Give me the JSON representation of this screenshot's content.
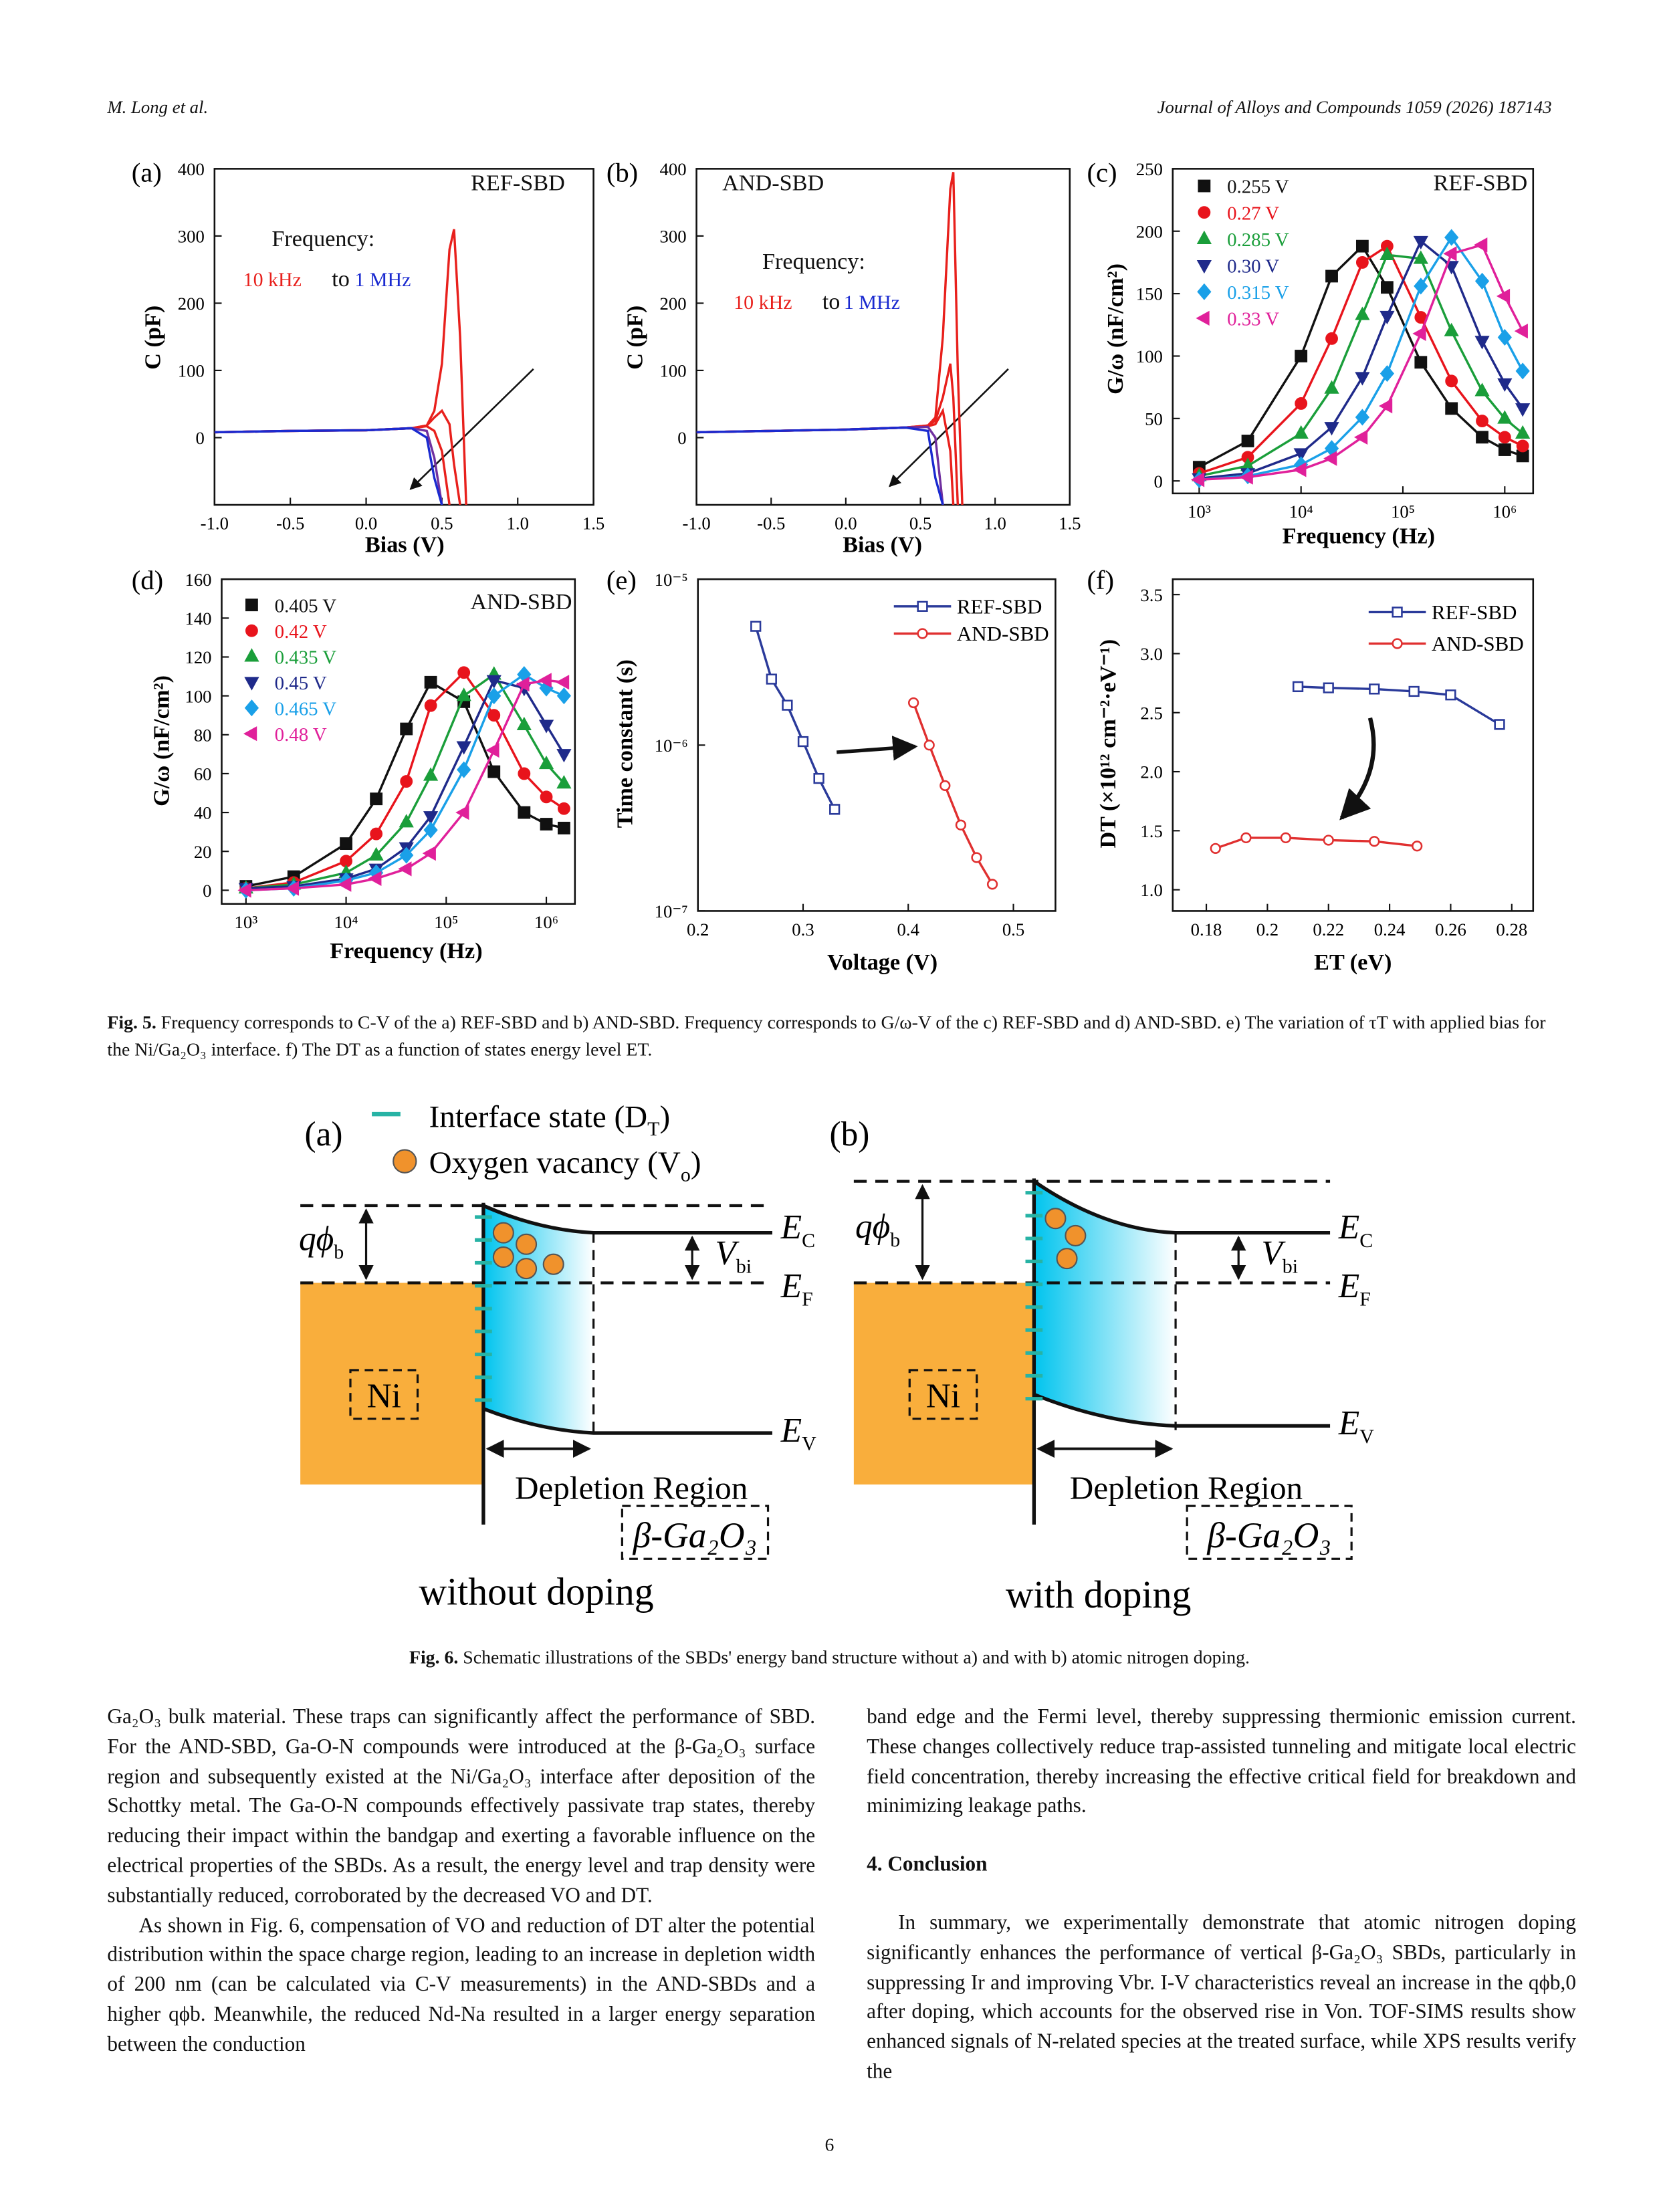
{
  "header": {
    "left": "M. Long et al.",
    "right": "Journal of Alloys and Compounds 1059 (2026) 187143"
  },
  "chart_data": [
    {
      "type": "line",
      "panel_label": "(a)",
      "xlabel": "Bias (V)",
      "ylabel": "C (pF)",
      "annotations": [
        {
          "text": "REF-SBD"
        },
        {
          "text": "Frequency:"
        },
        {
          "text": "10 kHz",
          "color": "#e8201c"
        },
        {
          "text": "to"
        },
        {
          "text": "1 MHz",
          "color": "#1a2ad0"
        }
      ],
      "xlim": [
        -1.0,
        1.5
      ],
      "xticks": [
        {
          "value": -1,
          "label": "-1.0"
        },
        {
          "value": -0.5,
          "label": "-0.5"
        },
        {
          "value": 0,
          "label": "0.0"
        },
        {
          "value": 0.5,
          "label": "0.5"
        },
        {
          "value": 1,
          "label": "1.0"
        },
        {
          "value": 1.5,
          "label": "1.5"
        }
      ],
      "ylim": [
        -100,
        400
      ],
      "yticks": [
        0,
        100,
        200,
        300,
        400
      ],
      "x": [
        -1.0,
        -0.5,
        0.0,
        0.3,
        0.4,
        0.45,
        0.5,
        0.55,
        0.58,
        0.62,
        0.66
      ],
      "series": [
        {
          "color": "#e8201c",
          "values": [
            8,
            10,
            11,
            14,
            18,
            40,
            110,
            280,
            310,
            150,
            -100
          ]
        },
        {
          "color": "#e8201c",
          "values": [
            8,
            10,
            11,
            14,
            18,
            30,
            40,
            20,
            -40,
            -100,
            null
          ]
        },
        {
          "color": "#e8201c",
          "values": [
            8,
            10,
            11,
            14,
            17,
            10,
            -20,
            -100,
            null,
            null,
            null
          ]
        },
        {
          "color": "#7030a0",
          "values": [
            8,
            10,
            11,
            14,
            10,
            -30,
            -100,
            null,
            null,
            null,
            null
          ]
        },
        {
          "color": "#1a2ad0",
          "values": [
            8,
            10,
            11,
            14,
            0,
            -60,
            -100,
            null,
            null,
            null,
            null
          ]
        }
      ]
    },
    {
      "type": "line",
      "panel_label": "(b)",
      "xlabel": "Bias (V)",
      "ylabel": "C (pF)",
      "annotations": [
        {
          "text": "AND-SBD"
        },
        {
          "text": "Frequency:"
        },
        {
          "text": "10 kHz",
          "color": "#e8201c"
        },
        {
          "text": "to"
        },
        {
          "text": "1 MHz",
          "color": "#1a2ad0"
        }
      ],
      "xlim": [
        -1.0,
        1.5
      ],
      "xticks": [
        {
          "value": -1,
          "label": "-1.0"
        },
        {
          "value": -0.5,
          "label": "-0.5"
        },
        {
          "value": 0,
          "label": "0.0"
        },
        {
          "value": 0.5,
          "label": "0.5"
        },
        {
          "value": 1,
          "label": "1.0"
        },
        {
          "value": 1.5,
          "label": "1.5"
        }
      ],
      "ylim": [
        -100,
        400
      ],
      "yticks": [
        0,
        100,
        200,
        300,
        400
      ],
      "x": [
        -1.0,
        -0.5,
        0.0,
        0.4,
        0.55,
        0.6,
        0.65,
        0.7,
        0.72,
        0.75,
        0.78
      ],
      "series": [
        {
          "color": "#e8201c",
          "values": [
            8,
            10,
            12,
            15,
            18,
            30,
            150,
            370,
            395,
            100,
            -100
          ]
        },
        {
          "color": "#e8201c",
          "values": [
            8,
            10,
            12,
            15,
            18,
            25,
            60,
            110,
            60,
            -100,
            null
          ]
        },
        {
          "color": "#e8201c",
          "values": [
            8,
            10,
            12,
            15,
            17,
            20,
            40,
            -20,
            -100,
            null,
            null
          ]
        },
        {
          "color": "#7030a0",
          "values": [
            8,
            10,
            12,
            15,
            16,
            0,
            -100,
            null,
            null,
            null,
            null
          ]
        },
        {
          "color": "#1a2ad0",
          "values": [
            8,
            10,
            12,
            15,
            10,
            -60,
            -100,
            null,
            null,
            null,
            null
          ]
        }
      ]
    },
    {
      "type": "line",
      "panel_label": "(c)",
      "xlabel": "Frequency (Hz)",
      "ylabel": "G/ω (nF/cm²)",
      "xscale": "log",
      "annotations": [
        {
          "text": "REF-SBD"
        }
      ],
      "xlim": [
        550,
        1900000
      ],
      "xticks": [
        {
          "value": 1000,
          "label": "10³"
        },
        {
          "value": 10000,
          "label": "10⁴"
        },
        {
          "value": 100000,
          "label": "10⁵"
        },
        {
          "value": 1000000,
          "label": "10⁶"
        }
      ],
      "ylim": [
        -10,
        250
      ],
      "yticks": [
        0,
        50,
        100,
        150,
        200,
        250
      ],
      "x": [
        1000,
        3000,
        10000,
        20000,
        40000,
        70000,
        150000,
        300000,
        600000,
        1000000,
        1500000
      ],
      "series": [
        {
          "name": "0.255 V",
          "color": "#111111",
          "marker": "square",
          "values": [
            11,
            32,
            100,
            164,
            188,
            155,
            95,
            58,
            35,
            25,
            20
          ]
        },
        {
          "name": "0.27 V",
          "color": "#e8141c",
          "marker": "circle",
          "values": [
            6,
            19,
            62,
            114,
            175,
            188,
            131,
            80,
            48,
            35,
            28
          ]
        },
        {
          "name": "0.285 V",
          "color": "#1a9e3a",
          "marker": "triangle-up",
          "values": [
            4,
            12,
            38,
            74,
            133,
            181,
            178,
            120,
            72,
            50,
            38
          ]
        },
        {
          "name": "0.30 V",
          "color": "#1f2a8a",
          "marker": "triangle-down",
          "values": [
            2,
            6,
            22,
            43,
            83,
            132,
            192,
            172,
            112,
            78,
            58
          ]
        },
        {
          "name": "0.315 V",
          "color": "#1aa0e8",
          "marker": "diamond",
          "values": [
            1,
            4,
            13,
            26,
            51,
            86,
            156,
            195,
            160,
            115,
            88
          ]
        },
        {
          "name": "0.33 V",
          "color": "#e0209a",
          "marker": "triangle-left",
          "values": [
            1,
            3,
            9,
            18,
            35,
            60,
            118,
            182,
            189,
            148,
            120
          ]
        }
      ]
    },
    {
      "type": "line",
      "panel_label": "(d)",
      "xlabel": "Frequency (Hz)",
      "ylabel": "G/ω (nF/cm²)",
      "xscale": "log",
      "annotations": [
        {
          "text": "AND-SBD"
        }
      ],
      "xlim": [
        572,
        1930000
      ],
      "xticks": [
        {
          "value": 1000,
          "label": "10³"
        },
        {
          "value": 10000,
          "label": "10⁴"
        },
        {
          "value": 100000,
          "label": "10⁵"
        },
        {
          "value": 1000000,
          "label": "10⁶"
        }
      ],
      "ylim": [
        -7,
        160
      ],
      "yticks": [
        0,
        20,
        40,
        60,
        80,
        100,
        120,
        140,
        160
      ],
      "x": [
        1000,
        3000,
        10000,
        20000,
        40000,
        70000,
        150000,
        300000,
        600000,
        1000000,
        1500000
      ],
      "series": [
        {
          "name": "0.405 V",
          "color": "#111111",
          "marker": "square",
          "values": [
            2,
            7,
            24,
            47,
            83,
            107,
            97,
            61,
            40,
            34,
            32
          ]
        },
        {
          "name": "0.42 V",
          "color": "#e8141c",
          "marker": "circle",
          "values": [
            1,
            4,
            15,
            29,
            56,
            95,
            112,
            90,
            60,
            48,
            42
          ]
        },
        {
          "name": "0.435 V",
          "color": "#1a9e3a",
          "marker": "triangle-up",
          "values": [
            1,
            3,
            9,
            18,
            35,
            59,
            100,
            111,
            85,
            65,
            55
          ]
        },
        {
          "name": "0.45 V",
          "color": "#1f2a8a",
          "marker": "triangle-down",
          "values": [
            1,
            2,
            6,
            11,
            22,
            38,
            74,
            108,
            104,
            85,
            70
          ]
        },
        {
          "name": "0.465 V",
          "color": "#1aa0e8",
          "marker": "diamond",
          "values": [
            0,
            1,
            5,
            9,
            18,
            31,
            62,
            100,
            111,
            104,
            100
          ]
        },
        {
          "name": "0.48 V",
          "color": "#e0209a",
          "marker": "triangle-left",
          "values": [
            0,
            1,
            3,
            6,
            11,
            19,
            40,
            72,
            106,
            108,
            107
          ]
        }
      ]
    },
    {
      "type": "line",
      "panel_label": "(e)",
      "xlabel": "Voltage (V)",
      "ylabel": "Time constant (s)",
      "yscale": "log",
      "xlim": [
        0.2,
        0.54
      ],
      "xticks": [
        0.2,
        0.3,
        0.4,
        0.5
      ],
      "ylim": [
        1e-07,
        1e-05
      ],
      "yticks": [
        {
          "value": 1e-07,
          "label": "10⁻⁷"
        },
        {
          "value": 1e-06,
          "label": "10⁻⁶"
        },
        {
          "value": 1e-05,
          "label": "10⁻⁵"
        }
      ],
      "series": [
        {
          "name": "REF-SBD",
          "color": "#2a3a9a",
          "marker": "square",
          "filled": false,
          "x": [
            0.255,
            0.27,
            0.285,
            0.3,
            0.315,
            0.33
          ],
          "values": [
            5.2e-06,
            2.5e-06,
            1.74e-06,
            1.05e-06,
            6.3e-07,
            4.1e-07
          ]
        },
        {
          "name": "AND-SBD",
          "color": "#e03030",
          "marker": "circle",
          "filled": false,
          "x": [
            0.405,
            0.42,
            0.435,
            0.45,
            0.465,
            0.48
          ],
          "values": [
            1.8e-06,
            1e-06,
            5.7e-07,
            3.3e-07,
            2.1e-07,
            1.45e-07
          ]
        }
      ]
    },
    {
      "type": "line",
      "panel_label": "(f)",
      "xlabel": "ET (eV)",
      "ylabel": "DT (×10¹² cm⁻²·eV⁻¹)",
      "xlim": [
        0.169,
        0.287
      ],
      "xticks": [
        0.18,
        0.2,
        0.22,
        0.24,
        0.26,
        0.28
      ],
      "ylim": [
        0.82,
        3.63
      ],
      "yticks": [
        {
          "value": 1,
          "label": "1.0"
        },
        {
          "value": 1.5,
          "label": "1.5"
        },
        {
          "value": 2,
          "label": "2.0"
        },
        {
          "value": 2.5,
          "label": "2.5"
        },
        {
          "value": 3,
          "label": "3.0"
        },
        {
          "value": 3.5,
          "label": "3.5"
        }
      ],
      "series": [
        {
          "name": "REF-SBD",
          "color": "#2a3a9a",
          "marker": "square",
          "filled": false,
          "x": [
            0.21,
            0.22,
            0.235,
            0.248,
            0.26,
            0.276
          ],
          "values": [
            2.72,
            2.71,
            2.7,
            2.68,
            2.65,
            2.4
          ]
        },
        {
          "name": "AND-SBD",
          "color": "#e03030",
          "marker": "circle",
          "filled": false,
          "x": [
            0.183,
            0.193,
            0.206,
            0.22,
            0.235,
            0.249
          ],
          "values": [
            1.35,
            1.44,
            1.44,
            1.42,
            1.41,
            1.37
          ]
        }
      ]
    }
  ],
  "figure5_caption": {
    "label": "Fig. 5.",
    "text": "Frequency corresponds to C-V of the a) REF-SBD and b) AND-SBD. Frequency corresponds to G/ω-V of the c) REF-SBD and d) AND-SBD. e) The variation of τT with applied bias for the Ni/Ga₂O₃ interface. f) The DT as a function of states energy level ET."
  },
  "figure6": {
    "legend": {
      "interface": {
        "text": "Interface state (D",
        "sub": "T",
        "tail": ")"
      },
      "vacancy": {
        "text": "Oxygen vacancy (V",
        "sub": "o",
        "tail": ")"
      }
    },
    "panels": [
      {
        "label": "(a)",
        "barrier": {
          "main": "qϕ",
          "sub": "b"
        },
        "ec": {
          "main": "E",
          "sub": "C"
        },
        "ef": {
          "main": "E",
          "sub": "F"
        },
        "ev": {
          "main": "E",
          "sub": "V"
        },
        "vbi": {
          "main": "V",
          "sub": "bi"
        },
        "metal": "Ni",
        "region": "Depletion Region",
        "semiconductor": "β-Ga₂O₃",
        "caption": "without doping"
      },
      {
        "label": "(b)",
        "barrier": {
          "main": "qϕ",
          "sub": "b"
        },
        "ec": {
          "main": "E",
          "sub": "C"
        },
        "ef": {
          "main": "E",
          "sub": "F"
        },
        "ev": {
          "main": "E",
          "sub": "V"
        },
        "vbi": {
          "main": "V",
          "sub": "bi"
        },
        "metal": "Ni",
        "region": "Depletion Region",
        "semiconductor": "β-Ga₂O₃",
        "caption": "with doping"
      }
    ]
  },
  "figure6_caption": {
    "label": "Fig. 6.",
    "text": "Schematic illustrations of the SBDs' energy band structure without a) and with b) atomic nitrogen doping."
  },
  "body": {
    "left": [
      "Ga₂O₃ bulk material. These traps can significantly affect the performance of SBD. For the AND-SBD, Ga-O-N compounds were introduced at the β-Ga₂O₃ surface region and subsequently existed at the Ni/Ga₂O₃ interface after deposition of the Schottky metal. The Ga-O-N compounds effectively passivate trap states, thereby reducing their impact within the bandgap and exerting a favorable influence on the electrical properties of the SBDs. As a result, the energy level and trap density were substantially reduced, corroborated by the decreased VO and DT.",
      "As shown in Fig. 6, compensation of VO and reduction of DT alter the potential distribution within the space charge region, leading to an increase in depletion width of 200 nm (can be calculated via C-V measurements) in the AND-SBDs and a higher qϕb. Meanwhile, the reduced Nd-Na resulted in a larger energy separation between the conduction"
    ],
    "right": [
      "band edge and the Fermi level, thereby suppressing thermionic emission current. These changes collectively reduce trap-assisted tunneling and mitigate local electric field concentration, thereby increasing the effective critical field for breakdown and minimizing leakage paths."
    ],
    "heading": "4. Conclusion",
    "conclusion": "In summary, we experimentally demonstrate that atomic nitrogen doping significantly enhances the performance of vertical β-Ga₂O₃ SBDs, particularly in suppressing Ir and improving Vbr. I-V characteristics reveal an increase in the qϕb,0 after doping, which accounts for the observed rise in Von. TOF-SIMS results show enhanced signals of N-related species at the treated surface, while XPS results verify the"
  },
  "page_number": "6"
}
